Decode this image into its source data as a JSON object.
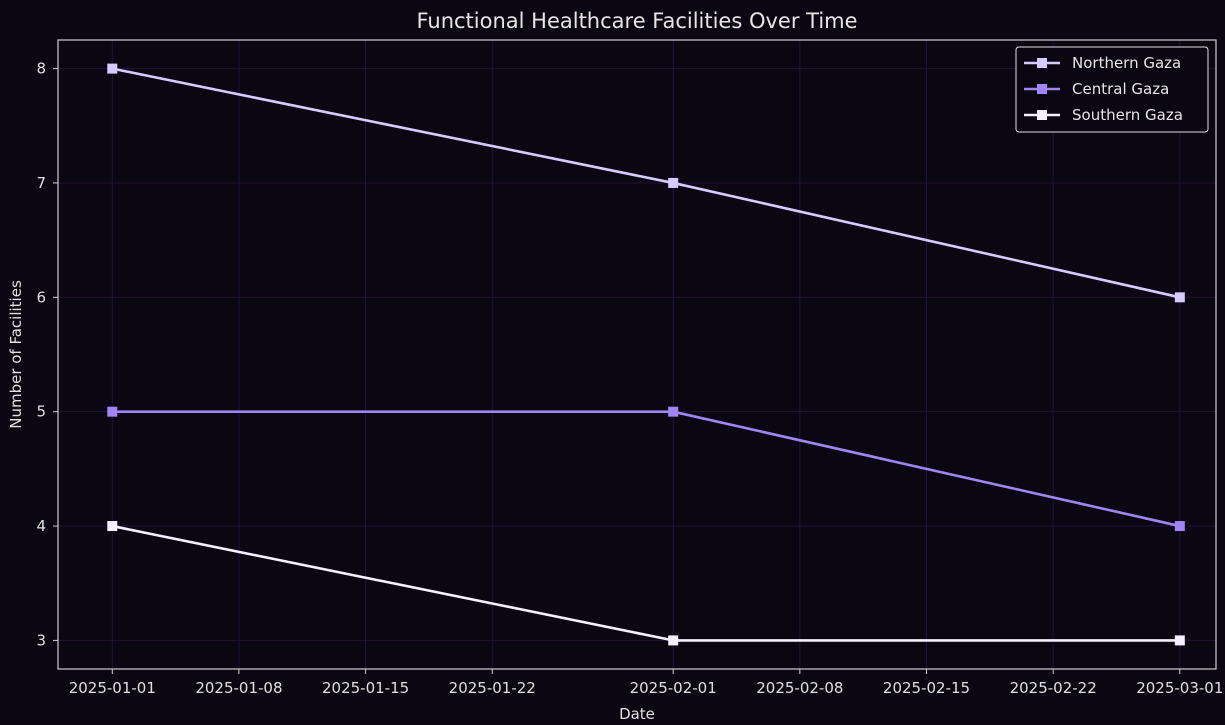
{
  "chart_data": {
    "type": "line",
    "title": "Functional Healthcare Facilities Over Time",
    "xlabel": "Date",
    "ylabel": "Number of Facilities",
    "x": [
      "2025-01-01",
      "2025-02-01",
      "2025-03-01"
    ],
    "xlim": [
      "2024-12-29",
      "2025-03-03"
    ],
    "ylim": [
      2.75,
      8.25
    ],
    "x_ticks": [
      "2025-01-01",
      "2025-01-08",
      "2025-01-15",
      "2025-01-22",
      "2025-02-01",
      "2025-02-08",
      "2025-02-15",
      "2025-02-22",
      "2025-03-01"
    ],
    "y_ticks": [
      3,
      4,
      5,
      6,
      7,
      8
    ],
    "grid": true,
    "legend_position": "top-right",
    "marker": "square",
    "series": [
      {
        "name": "Northern Gaza",
        "values": [
          8,
          7,
          6
        ],
        "color": "#d4ccff"
      },
      {
        "name": "Central Gaza",
        "values": [
          5,
          5,
          4
        ],
        "color": "#9f85f5"
      },
      {
        "name": "Southern Gaza",
        "values": [
          4,
          3,
          3
        ],
        "color": "#f4f0ff"
      }
    ],
    "colors": {
      "background": "#0a0612",
      "axes_frame": "#cfcfcf",
      "grid": "#24123a",
      "text": "#e0e0e0"
    }
  }
}
